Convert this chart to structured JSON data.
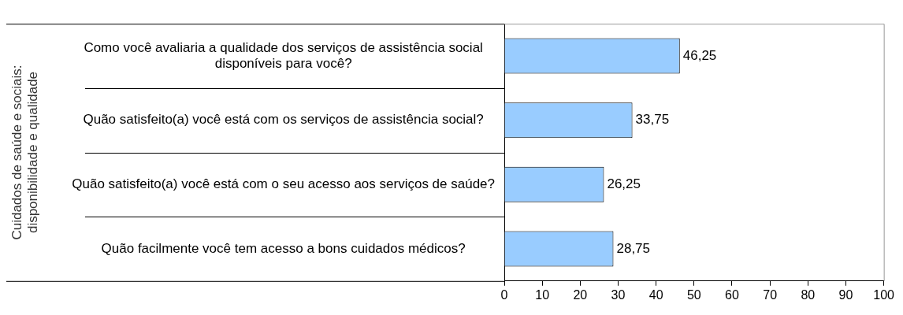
{
  "chart_data": {
    "type": "bar",
    "orientation": "horizontal",
    "ylabel": "Cuidados de saúde e sociais: disponibilidade e qualidade",
    "categories": [
      "Como você avaliaria a qualidade dos serviços de assistência social disponíveis para você?",
      "Quão satisfeito(a) você está com os serviços de assistência social?",
      "Quão satisfeito(a) você está com o seu acesso aos serviços de saúde?",
      "Quão facilmente você tem acesso a bons cuidados médicos?"
    ],
    "values": [
      46.25,
      33.75,
      26.25,
      28.75
    ],
    "value_labels": [
      "46,25",
      "33,75",
      "26,25",
      "28,75"
    ],
    "color": "#99ccff",
    "xlim": [
      0,
      100
    ],
    "xticks": [
      0,
      10,
      20,
      30,
      40,
      50,
      60,
      70,
      80,
      90,
      100
    ],
    "legend": false
  }
}
